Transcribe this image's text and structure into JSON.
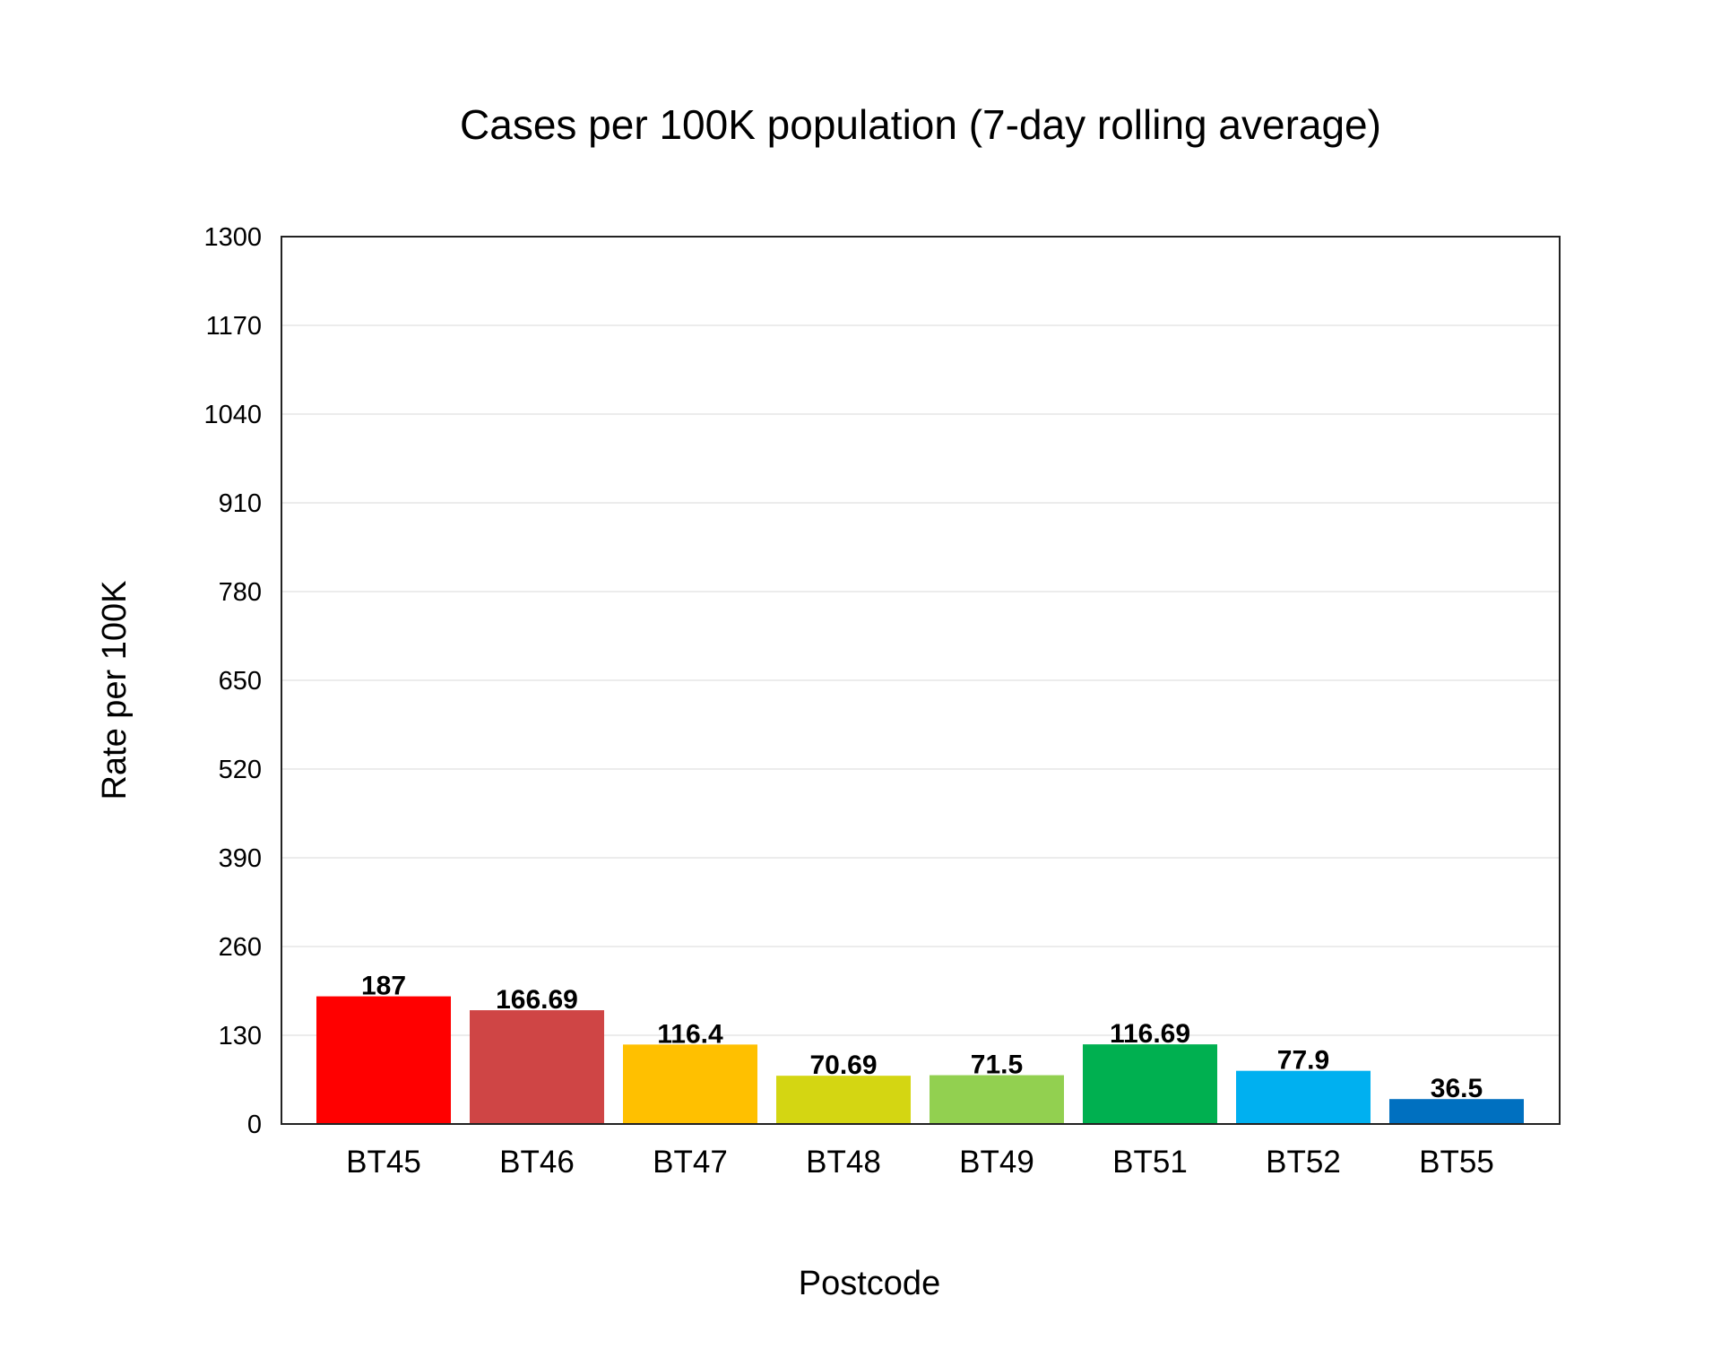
{
  "chart_data": {
    "type": "bar",
    "title": "Cases per 100K population (7-day rolling average)",
    "xlabel": "Postcode",
    "ylabel": "Rate per 100K",
    "ylim": [
      0,
      1300
    ],
    "yticks": [
      0,
      130,
      260,
      390,
      520,
      650,
      780,
      910,
      1040,
      1170,
      1300
    ],
    "categories": [
      "BT45",
      "BT46",
      "BT47",
      "BT48",
      "BT49",
      "BT51",
      "BT52",
      "BT55"
    ],
    "values": [
      187,
      166.69,
      116.4,
      70.69,
      71.5,
      116.69,
      77.9,
      36.5
    ],
    "data_labels": [
      "187",
      "166.69",
      "116.4",
      "70.69",
      "71.5",
      "116.69",
      "77.9",
      "36.5"
    ],
    "colors": [
      "#ff0000",
      "#cf4545",
      "#ffc000",
      "#d4d612",
      "#92d050",
      "#00b050",
      "#00b0f0",
      "#0070c0"
    ],
    "grid": true,
    "legend": "none"
  }
}
